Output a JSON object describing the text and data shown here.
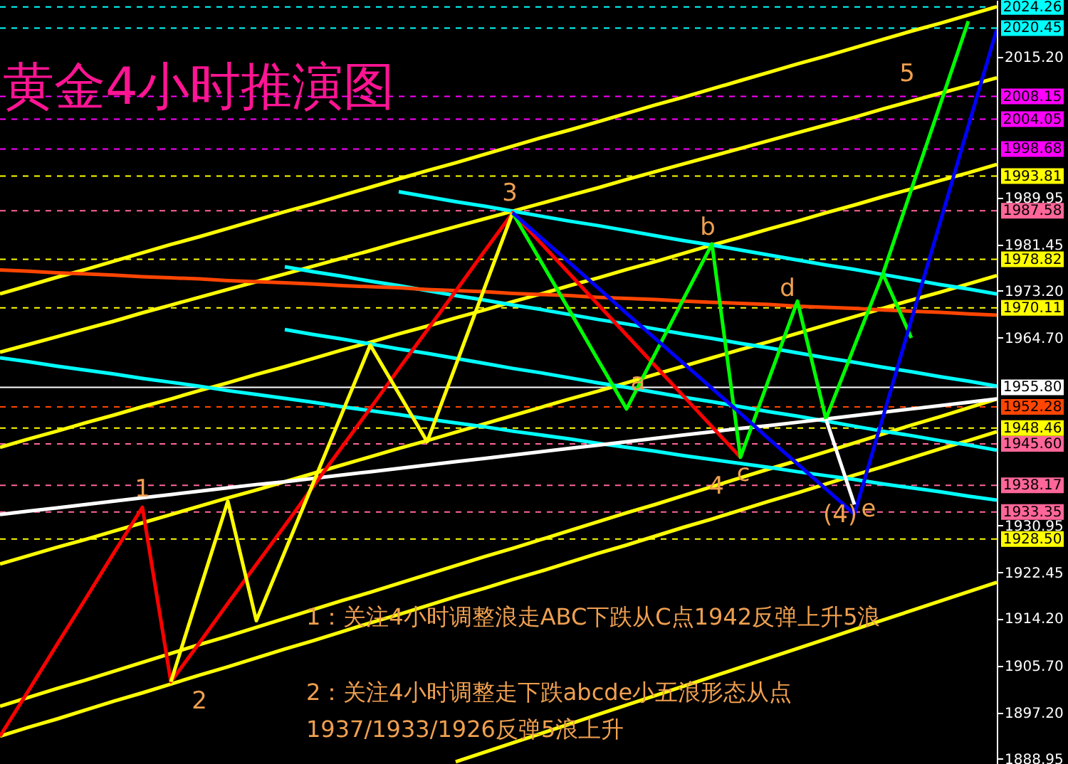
{
  "chart_data": {
    "type": "line",
    "title": "黄金4小时推演图",
    "ylim": [
      1888,
      2025.5
    ],
    "tick_labels": "y",
    "categories": [
      null,
      null,
      null,
      null,
      null,
      null,
      null,
      null,
      null,
      null,
      null,
      null,
      null,
      null,
      null,
      null,
      null,
      null,
      null,
      null,
      null,
      null,
      null,
      null,
      null,
      null,
      null,
      null,
      null,
      null,
      null,
      null,
      null,
      null,
      null,
      null
    ],
    "yticks": [
      {
        "value": 1888.95,
        "label": "1888.95"
      },
      {
        "value": 1897.2,
        "label": "1897.20"
      },
      {
        "value": 1905.7,
        "label": "1905.70"
      },
      {
        "value": 1914.2,
        "label": "1914.20"
      },
      {
        "value": 1922.45,
        "label": "1922.45"
      },
      {
        "value": 1930.95,
        "label": "1930.95"
      },
      {
        "value": 1964.7,
        "label": "1964.70"
      },
      {
        "value": 1973.2,
        "label": "1973.20"
      },
      {
        "value": 1981.45,
        "label": "1981.45"
      },
      {
        "value": 1989.95,
        "label": "1989.95"
      },
      {
        "value": 2015.2,
        "label": "2015.20"
      }
    ],
    "series": [
      {
        "color": "#ffff00",
        "values": [
          1972.6,
          1974.1,
          1975.6,
          1977.0,
          1978.5,
          1980.0,
          1981.5,
          1982.9,
          1984.4,
          1985.9,
          1987.4,
          1988.8,
          1990.3,
          1991.8,
          1993.3,
          1994.8,
          1996.2,
          1997.7,
          1999.2,
          2000.7,
          2002.1,
          2003.6,
          2005.1,
          2006.6,
          2008.0,
          2009.5,
          2011.0,
          2012.5,
          2014.0,
          2015.4,
          2016.9,
          2018.4,
          2019.9,
          2021.3,
          2022.8,
          2024.3
        ]
      },
      {
        "color": "#ffff00",
        "values": [
          1962.1,
          1963.5,
          1964.9,
          1966.3,
          1967.7,
          1969.2,
          1970.6,
          1972.0,
          1973.4,
          1974.8,
          1976.2,
          1977.6,
          1979.0,
          1980.4,
          1981.9,
          1983.3,
          1984.7,
          1986.1,
          1987.5,
          1988.9,
          1990.3,
          1991.7,
          1993.2,
          1994.6,
          1996.0,
          1997.4,
          1998.8,
          2000.2,
          2001.6,
          2003.0,
          2004.4,
          2005.9,
          2007.3,
          2008.7,
          2010.1,
          2011.5
        ]
      },
      {
        "color": "#ffff00",
        "values": [
          1945.0,
          1946.5,
          1947.9,
          1949.4,
          1950.8,
          1952.3,
          1953.7,
          1955.2,
          1956.6,
          1958.1,
          1959.5,
          1961.0,
          1962.5,
          1963.9,
          1965.4,
          1966.8,
          1968.3,
          1969.7,
          1971.2,
          1972.6,
          1974.1,
          1975.5,
          1977.0,
          1978.4,
          1979.9,
          1981.4,
          1982.8,
          1984.3,
          1985.7,
          1987.2,
          1988.6,
          1990.1,
          1991.5,
          1993.0,
          1994.4,
          1995.9
        ]
      },
      {
        "color": "#ffff00",
        "values": [
          1924.0,
          1925.5,
          1927.0,
          1928.4,
          1929.9,
          1931.4,
          1932.9,
          1934.4,
          1935.9,
          1937.3,
          1938.8,
          1940.3,
          1941.8,
          1943.3,
          1944.8,
          1946.2,
          1947.7,
          1949.2,
          1950.7,
          1952.2,
          1953.7,
          1955.1,
          1956.6,
          1958.1,
          1959.6,
          1961.1,
          1962.6,
          1964.0,
          1965.5,
          1967.0,
          1968.5,
          1970.0,
          1971.5,
          1972.9,
          1974.4,
          1975.9
        ]
      },
      {
        "color": "#ffff00",
        "values": [
          1898.4,
          1900.0,
          1901.6,
          1903.1,
          1904.7,
          1906.3,
          1907.9,
          1909.5,
          1911.0,
          1912.6,
          1914.2,
          1915.8,
          1917.4,
          1918.9,
          1920.5,
          1922.1,
          1923.7,
          1925.3,
          1926.8,
          1928.4,
          1930.0,
          1931.6,
          1933.2,
          1934.7,
          1936.3,
          1937.9,
          1939.5,
          1941.1,
          1942.6,
          1944.2,
          1945.8,
          1947.4,
          1949.0,
          1950.5,
          1952.1,
          1953.7
        ]
      },
      {
        "color": "#ffff00",
        "values": [
          1893.0,
          1894.6,
          1896.1,
          1897.7,
          1899.3,
          1900.8,
          1902.4,
          1904.0,
          1905.5,
          1907.1,
          1908.7,
          1910.2,
          1911.8,
          1913.4,
          1914.9,
          1916.5,
          1918.1,
          1919.6,
          1921.2,
          1922.7,
          1924.3,
          1925.9,
          1927.4,
          1929.0,
          1930.6,
          1932.1,
          1933.7,
          1935.3,
          1936.8,
          1938.4,
          1940.0,
          1941.5,
          1943.1,
          1944.7,
          1946.2,
          1947.8
        ]
      },
      {
        "color": "#ffff00",
        "values": [
          null,
          null,
          null,
          null,
          null,
          null,
          null,
          null,
          null,
          null,
          null,
          null,
          null,
          null,
          null,
          null,
          1888.4,
          1890.1,
          1891.8,
          1893.5,
          1895.2,
          1896.9,
          1898.6,
          1900.3,
          1902.0,
          1903.7,
          1905.4,
          1907.1,
          1908.8,
          1910.5,
          1912.2,
          1913.9,
          1915.6,
          1917.3,
          1919.0,
          1920.7
        ]
      },
      {
        "color": "#00ffff",
        "values": [
          null,
          null,
          null,
          null,
          null,
          null,
          null,
          null,
          null,
          null,
          null,
          null,
          null,
          null,
          1991.0,
          1990.1,
          1989.2,
          1988.4,
          1987.5,
          1986.6,
          1985.7,
          1984.9,
          1984.0,
          1983.1,
          1982.2,
          1981.4,
          1980.5,
          1979.6,
          1978.7,
          1977.8,
          1977.0,
          1976.1,
          1975.2,
          1974.3,
          1973.5,
          1972.6
        ]
      },
      {
        "color": "#00ffff",
        "values": [
          null,
          null,
          null,
          null,
          null,
          null,
          null,
          null,
          null,
          null,
          1977.5,
          1976.6,
          1975.8,
          1974.9,
          1974.1,
          1973.2,
          1972.3,
          1971.5,
          1970.6,
          1969.8,
          1968.9,
          1968.0,
          1967.2,
          1966.3,
          1965.4,
          1964.6,
          1963.7,
          1962.9,
          1962.0,
          1961.1,
          1960.3,
          1959.4,
          1958.6,
          1957.7,
          1956.9,
          1956.0
        ]
      },
      {
        "color": "#00ffff",
        "values": [
          null,
          null,
          null,
          null,
          null,
          null,
          null,
          null,
          null,
          null,
          1966.2,
          1965.3,
          1964.5,
          1963.6,
          1962.7,
          1961.9,
          1961.0,
          1960.1,
          1959.2,
          1958.4,
          1957.5,
          1956.6,
          1955.8,
          1954.9,
          1954.0,
          1953.2,
          1952.3,
          1951.4,
          1950.6,
          1949.7,
          1948.8,
          1947.9,
          1947.1,
          1946.2,
          1945.4,
          1944.5
        ]
      },
      {
        "color": "#00ffff",
        "values": [
          1961.1,
          1960.4,
          1959.6,
          1958.9,
          1958.2,
          1957.4,
          1956.7,
          1956.0,
          1955.2,
          1954.5,
          1953.8,
          1953.1,
          1952.3,
          1951.6,
          1950.9,
          1950.1,
          1949.4,
          1948.7,
          1947.9,
          1947.2,
          1946.5,
          1945.7,
          1945.0,
          1944.3,
          1943.5,
          1942.8,
          1942.1,
          1941.4,
          1940.6,
          1939.9,
          1939.2,
          1938.4,
          1937.7,
          1937.0,
          1936.2,
          1935.5
        ]
      },
      {
        "color": "#ff4500",
        "values": [
          1976.9,
          1976.7,
          1976.4,
          1976.2,
          1976.0,
          1975.7,
          1975.5,
          1975.3,
          1975.0,
          1974.8,
          1974.6,
          1974.4,
          1974.1,
          1973.9,
          1973.7,
          1973.4,
          1973.2,
          1973.0,
          1972.7,
          1972.5,
          1972.3,
          1972.0,
          1971.8,
          1971.6,
          1971.3,
          1971.1,
          1970.9,
          1970.7,
          1970.4,
          1970.2,
          1970.0,
          1969.7,
          1969.5,
          1969.3,
          1969.0,
          1968.8
        ]
      },
      {
        "color": "#ffffff",
        "values": [
          1932.9,
          1933.5,
          1934.1,
          1934.7,
          1935.3,
          1935.9,
          1936.5,
          1937.1,
          1937.7,
          1938.3,
          1938.8,
          1939.4,
          1940.0,
          1940.6,
          1941.2,
          1941.8,
          1942.4,
          1943.0,
          1943.6,
          1944.2,
          1944.8,
          1945.4,
          1946.0,
          1946.6,
          1947.2,
          1947.8,
          1948.4,
          1948.9,
          1949.5,
          1950.1,
          1950.7,
          1951.3,
          1951.9,
          1952.5,
          1953.1,
          1953.7
        ]
      },
      {
        "color": "#ff0000",
        "values": [
          1893.0,
          1901.2,
          1909.5,
          1917.7,
          1926.0,
          1934.2,
          1902.8,
          1909.8,
          1916.9,
          1923.9,
          1930.9,
          1938.0,
          1945.0,
          1952.0,
          1959.1,
          1966.1,
          1973.1,
          1980.2,
          1987.2,
          1981.7,
          1976.2,
          1970.7,
          1965.2,
          1959.7,
          1954.2,
          1948.7,
          1943.2,
          null,
          null,
          null,
          null,
          null,
          null,
          null,
          null,
          null
        ]
      },
      {
        "color": "#ffff00",
        "values": [
          null,
          null,
          null,
          null,
          null,
          null,
          1902.8,
          1919.1,
          1935.3,
          1913.8,
          1926.2,
          1938.6,
          1951.0,
          1963.4,
          1954.7,
          1946.0,
          1959.7,
          1973.5,
          1987.2,
          null,
          null,
          null,
          null,
          null,
          null,
          null,
          null,
          null,
          null,
          null,
          null,
          null,
          null,
          null,
          null,
          null
        ]
      },
      {
        "color": "#00ff00",
        "values": [
          null,
          null,
          null,
          null,
          null,
          null,
          null,
          null,
          null,
          null,
          null,
          null,
          null,
          null,
          null,
          null,
          null,
          null,
          1987.2,
          1978.4,
          1969.6,
          1960.7,
          1951.9,
          1961.8,
          1971.7,
          1981.6,
          1943.2,
          1957.3,
          1971.3,
          1950.1,
          1963.2,
          1976.2,
          1964.7,
          null,
          null,
          null
        ]
      },
      {
        "color": "#00ff00",
        "values": [
          null,
          null,
          null,
          null,
          null,
          null,
          null,
          null,
          null,
          null,
          null,
          null,
          null,
          null,
          null,
          null,
          null,
          null,
          null,
          null,
          null,
          null,
          null,
          null,
          null,
          null,
          null,
          null,
          null,
          null,
          null,
          1976.2,
          1991.4,
          2006.5,
          2021.7,
          null
        ]
      },
      {
        "color": "#0000ff",
        "values": [
          null,
          null,
          null,
          null,
          null,
          null,
          null,
          null,
          null,
          null,
          null,
          null,
          null,
          null,
          null,
          null,
          null,
          null,
          1987.2,
          1982.7,
          1978.2,
          1973.7,
          1969.1,
          1964.6,
          1960.1,
          1955.6,
          1951.1,
          1946.5,
          1942.0,
          1937.5,
          1933.0,
          1950.4,
          1967.9,
          1985.3,
          2002.8,
          2020.2
        ]
      },
      {
        "color": "#ffffff",
        "values": [
          null,
          null,
          null,
          null,
          null,
          null,
          null,
          null,
          null,
          null,
          null,
          null,
          null,
          null,
          null,
          null,
          null,
          null,
          null,
          null,
          null,
          null,
          null,
          null,
          null,
          null,
          null,
          null,
          null,
          1950.1,
          1934.7,
          null,
          null,
          null,
          null,
          null
        ]
      }
    ],
    "ref_lines": [
      {
        "axis": "y",
        "value": 2024.26,
        "label": "2024.26",
        "color": "#00ffff",
        "line_style": "dashed"
      },
      {
        "axis": "y",
        "value": 2020.45,
        "label": "2020.45",
        "color": "#00ffff",
        "line_style": "dashed"
      },
      {
        "axis": "y",
        "value": 2008.15,
        "label": "2008.15",
        "color": "#ff00ff",
        "line_style": "dashed"
      },
      {
        "axis": "y",
        "value": 2004.05,
        "label": "2004.05",
        "color": "#ff00ff",
        "line_style": "dashed"
      },
      {
        "axis": "y",
        "value": 1998.68,
        "label": "1998.68",
        "color": "#ff00ff",
        "line_style": "dashed"
      },
      {
        "axis": "y",
        "value": 1993.81,
        "label": "1993.81",
        "color": "#ffff00",
        "line_style": "dashed"
      },
      {
        "axis": "y",
        "value": 1987.58,
        "label": "1987.58",
        "color": "#ff6699",
        "line_style": "dashed"
      },
      {
        "axis": "y",
        "value": 1978.82,
        "label": "1978.82",
        "color": "#ffff00",
        "line_style": "dashed"
      },
      {
        "axis": "y",
        "value": 1970.11,
        "label": "1970.11",
        "color": "#ffff00",
        "line_style": "dashed"
      },
      {
        "axis": "y",
        "value": 1955.8,
        "label": "1955.80",
        "color": "#ffffff",
        "line_style": "solid"
      },
      {
        "axis": "y",
        "value": 1952.28,
        "label": "1952.28",
        "color": "#ff4500",
        "line_style": "dashed"
      },
      {
        "axis": "y",
        "value": 1948.46,
        "label": "1948.46",
        "color": "#ffff00",
        "line_style": "dashed"
      },
      {
        "axis": "y",
        "value": 1945.6,
        "label": "1945.60",
        "color": "#ff6699",
        "line_style": "dashed"
      },
      {
        "axis": "y",
        "value": 1938.17,
        "label": "1938.17",
        "color": "#ff6699",
        "line_style": "dashed"
      },
      {
        "axis": "y",
        "value": 1933.35,
        "label": "1933.35",
        "color": "#ff6699",
        "line_style": "dashed"
      },
      {
        "axis": "y",
        "value": 1928.5,
        "label": "1928.50",
        "color": "#ffff00",
        "line_style": "dashed"
      }
    ],
    "annotations": [
      "1",
      "2",
      "3",
      "4",
      "5",
      "a",
      "b",
      "c",
      "d",
      "(4)",
      "e",
      "1：关注4小时调整浪走ABC下跌从C点1942反弹上升5浪",
      "2：关注4小时调整走下跌abcde小五浪形态从点\n1937/1933/1926反弹5浪上升"
    ]
  }
}
